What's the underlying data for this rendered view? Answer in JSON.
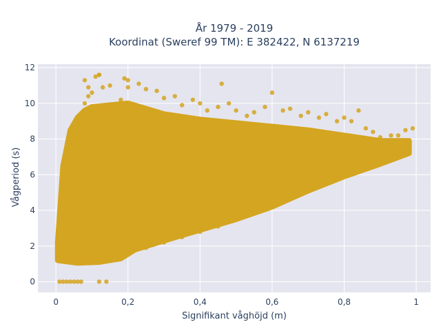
{
  "chart_data": {
    "type": "scatter",
    "title_line1": "År 1979 - 2019",
    "title_line2": "Koordinat (Sweref 99 TM): E 382422, N 6137219",
    "xlabel": "Signifikant våghöjd (m)",
    "ylabel": "Vågperiod (s)",
    "xlim": [
      -0.05,
      1.04
    ],
    "ylim": [
      -0.6,
      12.2
    ],
    "xticks": [
      0,
      0.2,
      0.4,
      0.6,
      0.8,
      1
    ],
    "xtick_labels": [
      "0",
      "0,2",
      "0,4",
      "0,6",
      "0,8",
      "1"
    ],
    "yticks": [
      0,
      2,
      4,
      6,
      8,
      10,
      12
    ],
    "ytick_labels": [
      "0",
      "2",
      "4",
      "6",
      "8",
      "10",
      "12"
    ],
    "grid": true,
    "marker_color": "#d4a520",
    "plot_background": "#e5e5ef",
    "series": [
      {
        "points": [
          [
            0.01,
            1.5
          ],
          [
            0.02,
            1.2
          ],
          [
            0.03,
            1.1
          ],
          [
            0.04,
            2.0
          ],
          [
            0.05,
            1.4
          ],
          [
            0.06,
            1.1
          ],
          [
            0.08,
            1.2
          ],
          [
            0.1,
            1.1
          ],
          [
            0.12,
            1.3
          ],
          [
            0.15,
            1.4
          ],
          [
            0.2,
            1.6
          ],
          [
            0.25,
            1.9
          ],
          [
            0.3,
            2.2
          ],
          [
            0.35,
            2.5
          ],
          [
            0.4,
            2.8
          ],
          [
            0.45,
            3.1
          ],
          [
            0.5,
            3.5
          ],
          [
            0.55,
            3.9
          ],
          [
            0.6,
            4.3
          ],
          [
            0.65,
            4.7
          ],
          [
            0.7,
            5.1
          ],
          [
            0.75,
            5.5
          ],
          [
            0.8,
            5.9
          ],
          [
            0.85,
            6.3
          ],
          [
            0.9,
            6.7
          ],
          [
            0.95,
            7.2
          ],
          [
            0.98,
            7.5
          ],
          [
            0.02,
            5.0
          ],
          [
            0.03,
            6.4
          ],
          [
            0.04,
            7.2
          ],
          [
            0.05,
            8.2
          ],
          [
            0.06,
            8.8
          ],
          [
            0.07,
            9.3
          ],
          [
            0.08,
            10.0
          ],
          [
            0.09,
            10.4
          ],
          [
            0.1,
            10.6
          ],
          [
            0.11,
            11.5
          ],
          [
            0.12,
            11.6
          ],
          [
            0.13,
            10.9
          ],
          [
            0.15,
            11.0
          ],
          [
            0.18,
            10.2
          ],
          [
            0.2,
            11.3
          ],
          [
            0.23,
            11.1
          ],
          [
            0.25,
            10.8
          ],
          [
            0.28,
            10.7
          ],
          [
            0.3,
            10.3
          ],
          [
            0.33,
            10.4
          ],
          [
            0.35,
            9.9
          ],
          [
            0.38,
            10.2
          ],
          [
            0.4,
            10.0
          ],
          [
            0.42,
            9.6
          ],
          [
            0.45,
            9.8
          ],
          [
            0.48,
            10.0
          ],
          [
            0.5,
            9.6
          ],
          [
            0.53,
            9.3
          ],
          [
            0.55,
            9.5
          ],
          [
            0.58,
            9.8
          ],
          [
            0.6,
            10.6
          ],
          [
            0.63,
            9.6
          ],
          [
            0.65,
            9.7
          ],
          [
            0.68,
            9.3
          ],
          [
            0.7,
            9.5
          ],
          [
            0.73,
            9.2
          ],
          [
            0.75,
            9.4
          ],
          [
            0.78,
            9.0
          ],
          [
            0.8,
            9.2
          ],
          [
            0.82,
            9.0
          ],
          [
            0.84,
            9.6
          ],
          [
            0.86,
            8.6
          ],
          [
            0.88,
            8.4
          ],
          [
            0.9,
            8.1
          ],
          [
            0.93,
            8.2
          ],
          [
            0.95,
            8.2
          ],
          [
            0.97,
            8.5
          ],
          [
            0.99,
            8.6
          ],
          [
            0.12,
            11.6
          ],
          [
            0.08,
            11.3
          ],
          [
            0.19,
            11.4
          ],
          [
            0.46,
            11.1
          ],
          [
            0.2,
            10.9
          ],
          [
            0.09,
            10.9
          ],
          [
            0.01,
            0.0
          ],
          [
            0.02,
            0.0
          ],
          [
            0.03,
            0.0
          ],
          [
            0.04,
            0.0
          ],
          [
            0.05,
            0.0
          ],
          [
            0.06,
            0.0
          ],
          [
            0.07,
            0.0
          ],
          [
            0.12,
            0.0
          ],
          [
            0.14,
            0.0
          ]
        ]
      }
    ]
  }
}
